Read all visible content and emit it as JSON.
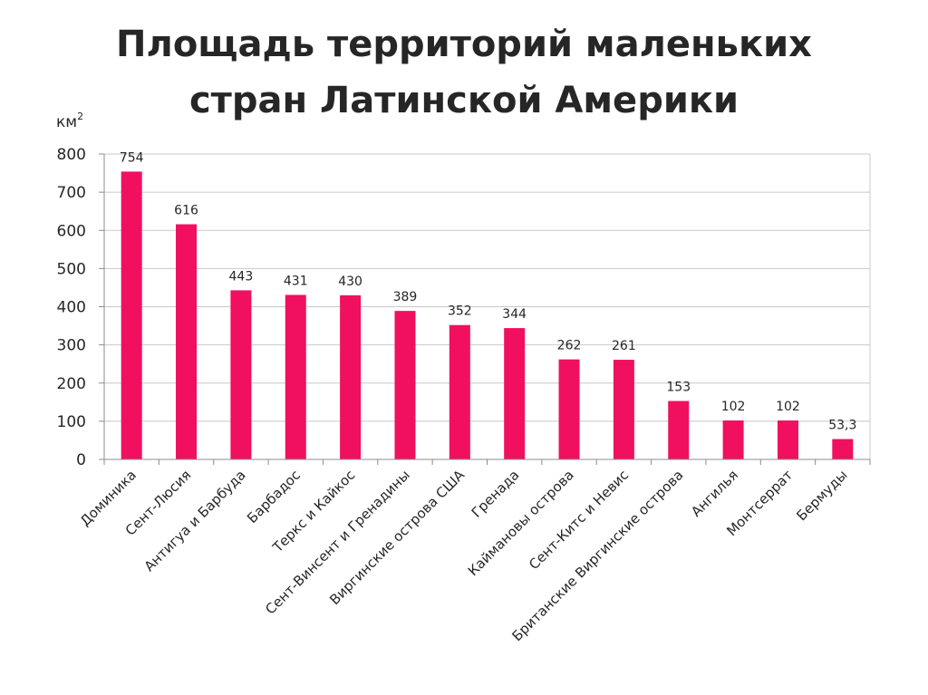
{
  "chart_data": {
    "type": "bar",
    "title_lines": [
      "Площадь территорий маленьких",
      "стран Латинской Америки"
    ],
    "unit_label": "км",
    "unit_superscript": "2",
    "categories": [
      "Доминика",
      "Сент-Люсия",
      "Антигуа и Барбуда",
      "Барбадос",
      "Теркс и Кайкос",
      "Сент-Винсент и Гренадины",
      "Виргинские острова США",
      "Гренада",
      "Каймановы острова",
      "Сент-Китс и Невис",
      "Британские Виргинские острова",
      "Ангилья",
      "Монтсеррат",
      "Бермуды"
    ],
    "values": [
      754,
      616,
      443,
      431,
      430,
      389,
      352,
      344,
      262,
      261,
      153,
      102,
      102,
      53.3
    ],
    "value_labels": [
      "754",
      "616",
      "443",
      "431",
      "430",
      "389",
      "352",
      "344",
      "262",
      "261",
      "153",
      "102",
      "102",
      "53,3"
    ],
    "ylim": [
      0,
      800
    ],
    "yticks": [
      0,
      100,
      200,
      300,
      400,
      500,
      600,
      700,
      800
    ],
    "grid": true,
    "legend": "none",
    "bar_color": "#f0105f",
    "grid_color": "#c8c8c8",
    "text_color": "#262626"
  }
}
